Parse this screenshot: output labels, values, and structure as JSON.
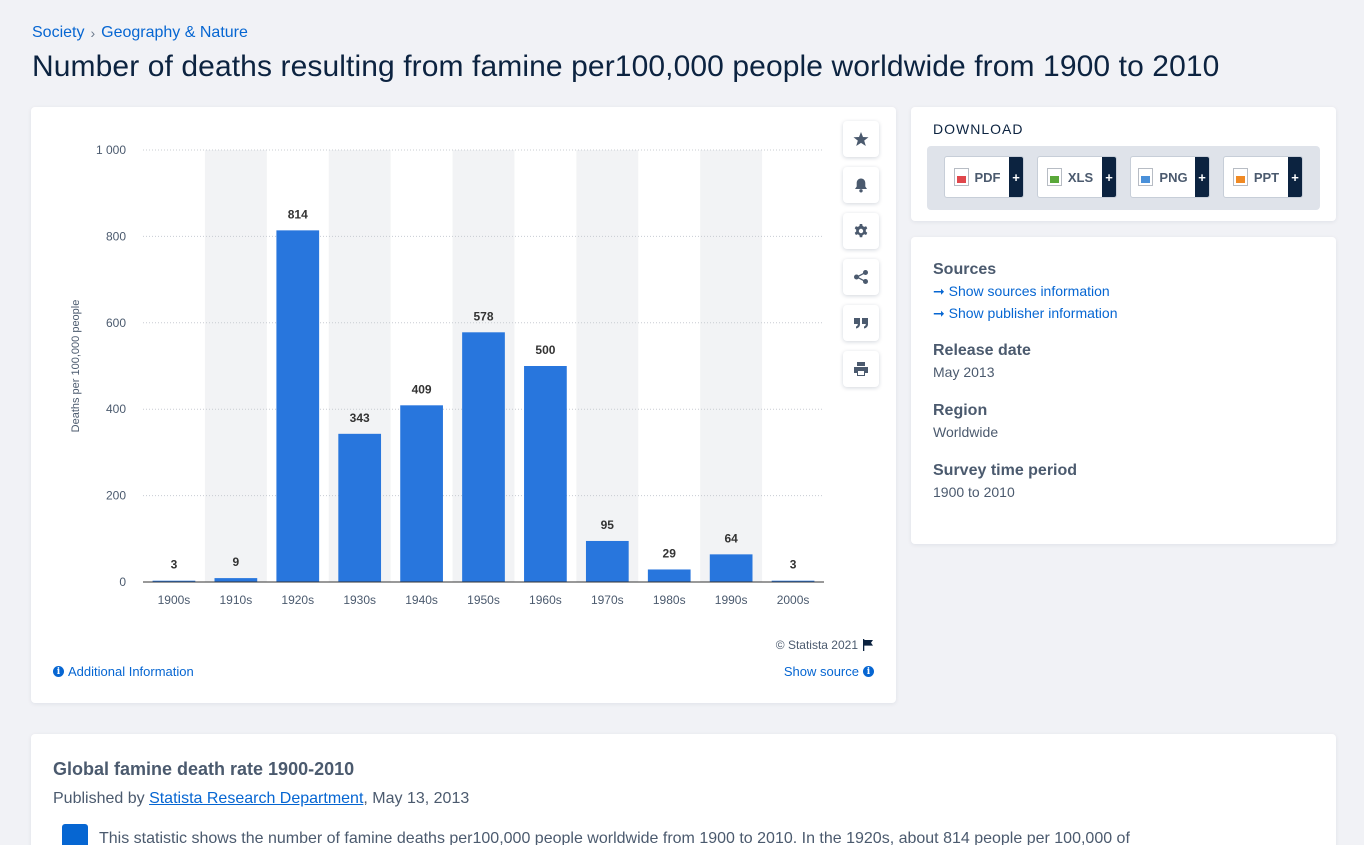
{
  "breadcrumb": {
    "item1": "Society",
    "separator": "›",
    "item2": "Geography & Nature"
  },
  "page_title": "Number of deaths resulting from famine per100,000 people worldwide from 1900 to 2010",
  "chart_data": {
    "type": "bar",
    "categories": [
      "1900s",
      "1910s",
      "1920s",
      "1930s",
      "1940s",
      "1950s",
      "1960s",
      "1970s",
      "1980s",
      "1990s",
      "2000s"
    ],
    "values": [
      3,
      9,
      814,
      343,
      409,
      578,
      500,
      95,
      29,
      64,
      3
    ],
    "data_labels": [
      "3",
      "9",
      "814",
      "343",
      "409",
      "578",
      "500",
      "95",
      "29",
      "64",
      "3"
    ],
    "ylabel": "Deaths per 100,000 people",
    "xlabel": "",
    "ylim": [
      0,
      1000
    ],
    "yticks": [
      0,
      200,
      400,
      600,
      800,
      1000
    ],
    "ytick_labels": [
      "0",
      "200",
      "400",
      "600",
      "800",
      "1 000"
    ],
    "grid": true,
    "bar_color": "#2876dd",
    "band_color": "#f2f3f5"
  },
  "chart_footer": {
    "copyright": "© Statista 2021",
    "additional_info": "Additional Information",
    "show_source": "Show source"
  },
  "toolbar_icons": [
    "star-icon",
    "bell-icon",
    "gear-icon",
    "share-icon",
    "quote-icon",
    "print-icon"
  ],
  "download": {
    "title": "DOWNLOAD",
    "buttons": [
      {
        "label": "PDF",
        "plus": "+",
        "icon": "pdf-file-icon",
        "color": "#e0474c"
      },
      {
        "label": "XLS",
        "plus": "+",
        "icon": "xls-file-icon",
        "color": "#5aa83a"
      },
      {
        "label": "PNG",
        "plus": "+",
        "icon": "png-file-icon",
        "color": "#4a90d9"
      },
      {
        "label": "PPT",
        "plus": "+",
        "icon": "ppt-file-icon",
        "color": "#f08a24"
      }
    ]
  },
  "meta": {
    "sources_heading": "Sources",
    "show_sources": "➞ Show sources information",
    "show_publisher": "➞ Show publisher information",
    "release_heading": "Release date",
    "release_value": "May 2013",
    "region_heading": "Region",
    "region_value": "Worldwide",
    "period_heading": "Survey time period",
    "period_value": "1900 to 2010"
  },
  "description": {
    "title": "Global famine death rate 1900-2010",
    "published_prefix": "Published by ",
    "publisher": "Statista Research Department",
    "published_suffix": ", May 13, 2013",
    "text": "This statistic shows the number of famine deaths per100,000 people worldwide from 1900 to 2010. In the 1920s, about 814 people per 100,000 of"
  }
}
